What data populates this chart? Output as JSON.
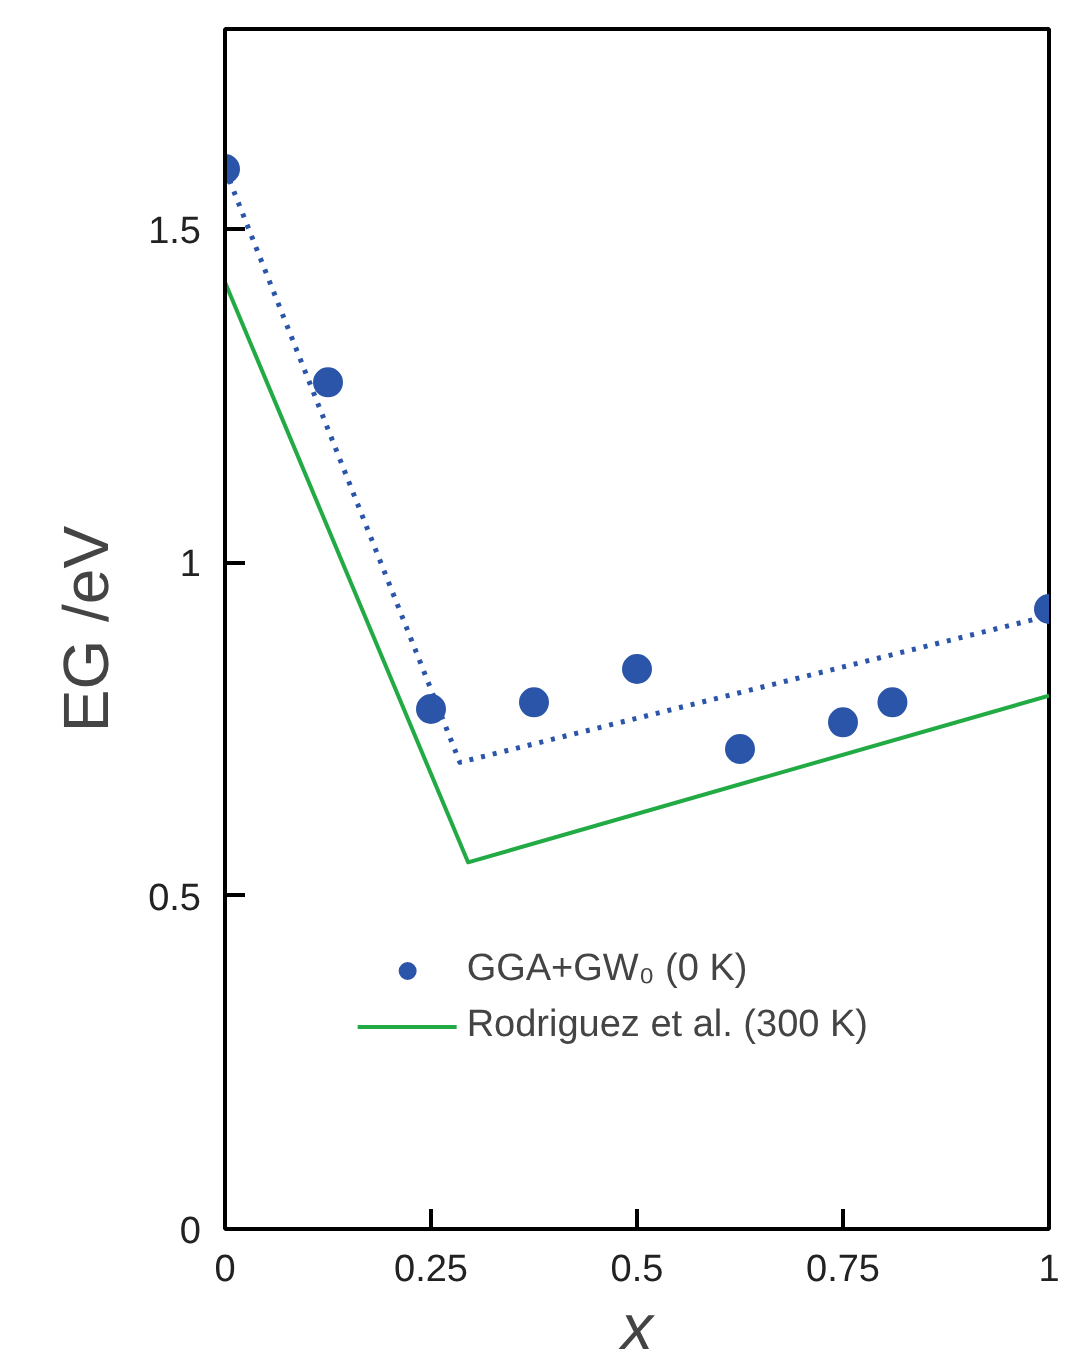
{
  "chart_data": {
    "type": "scatter",
    "xlabel": "x",
    "ylabel": "EG /eV",
    "xlim": [
      0,
      1
    ],
    "ylim": [
      0,
      1.8
    ],
    "xticks": [
      0,
      0.25,
      0.5,
      0.75,
      1
    ],
    "yticks": [
      0,
      0.5,
      1,
      1.5
    ],
    "grid": false,
    "legend": "bottom right",
    "series": [
      {
        "name": "GGA+GW₀ (0 K)",
        "marker": "circle",
        "color": "#2b55a8",
        "x": [
          0,
          0.125,
          0.25,
          0.375,
          0.5,
          0.625,
          0.75,
          0.81,
          1
        ],
        "values": [
          1.59,
          1.27,
          0.78,
          0.79,
          0.84,
          0.72,
          0.76,
          0.79,
          0.93
        ]
      },
      {
        "type": "line",
        "line_style": "dotted",
        "color": "#2b55a8",
        "x": [
          0,
          0.285,
          1
        ],
        "values": [
          1.59,
          0.7,
          0.92
        ]
      },
      {
        "name": "Rodriguez et al. (300 K)",
        "type": "line",
        "line_style": "solid",
        "color": "#22aa44",
        "x": [
          0,
          0.295,
          1
        ],
        "values": [
          1.42,
          0.55,
          0.8
        ]
      }
    ]
  }
}
